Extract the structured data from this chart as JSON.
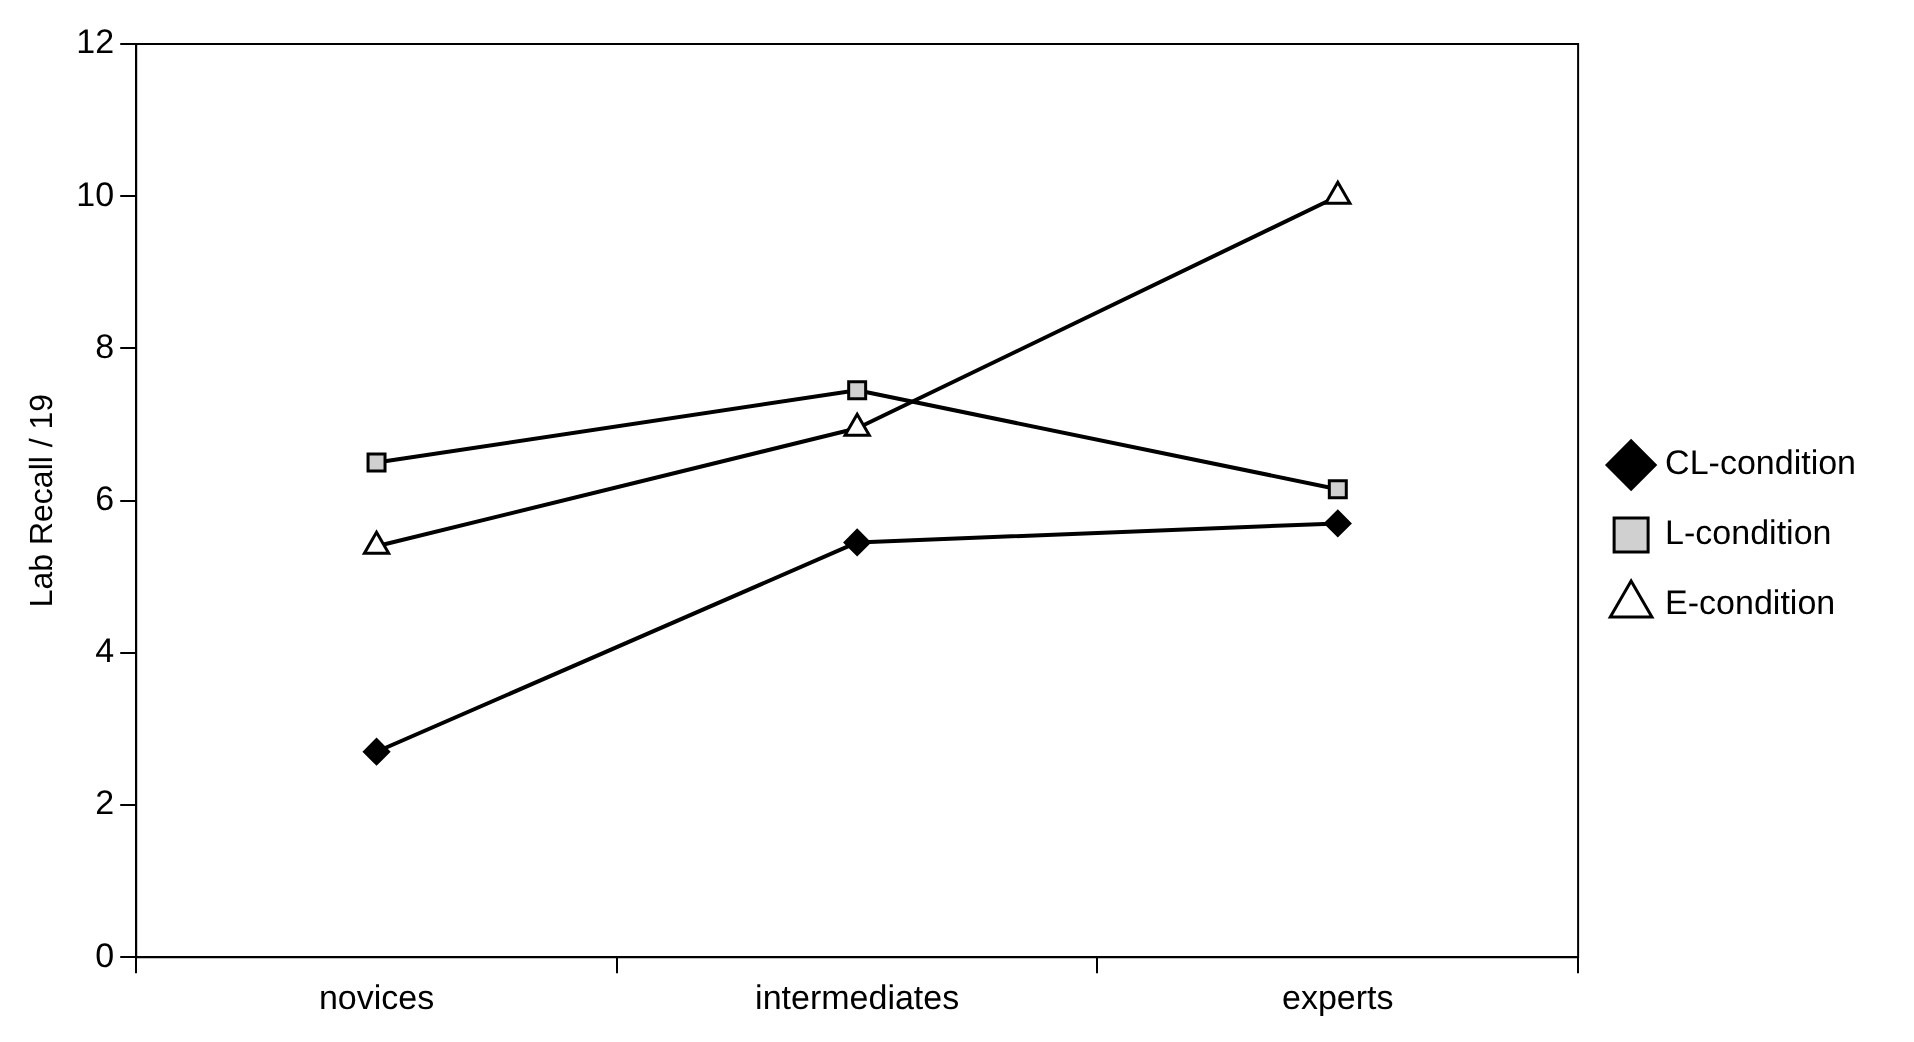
{
  "chart_data": {
    "type": "line",
    "ylabel": "Lab Recall / 19",
    "categories": [
      "novices",
      "intermediates",
      "experts"
    ],
    "series": [
      {
        "name": "CL-condition",
        "color": "#000000",
        "marker": "diamond",
        "values": [
          2.7,
          5.45,
          5.7
        ]
      },
      {
        "name": "L-condition",
        "color": "#000000",
        "marker": "square",
        "values": [
          6.5,
          7.45,
          6.15
        ]
      },
      {
        "name": "E-condition",
        "color": "#000000",
        "marker": "triangle",
        "values": [
          5.4,
          6.95,
          10
        ]
      }
    ],
    "ylim": [
      0,
      12
    ],
    "yticks": [
      0,
      2,
      4,
      6,
      8,
      10,
      12
    ],
    "grid": false,
    "legend": "right",
    "line_style": "solid"
  }
}
